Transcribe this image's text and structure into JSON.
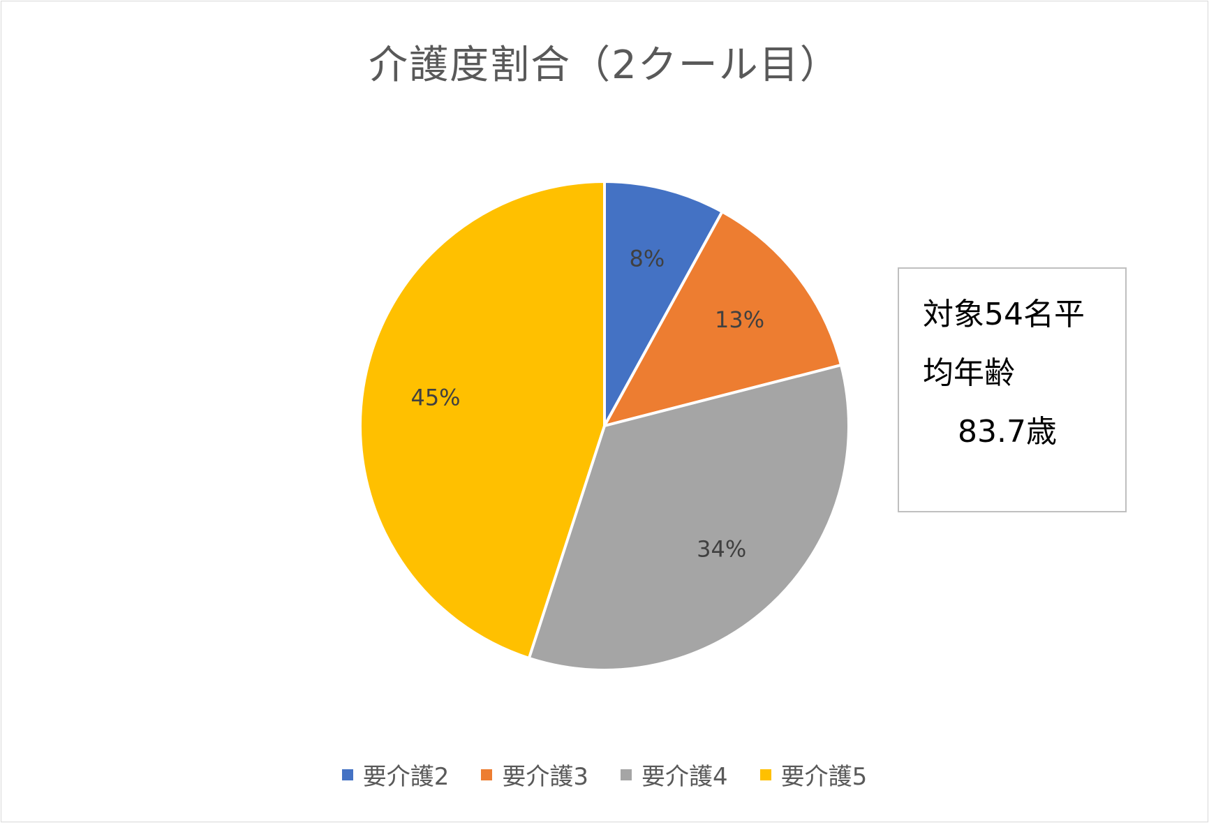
{
  "chart_data": {
    "type": "pie",
    "title": "介護度割合（2クール目）",
    "categories": [
      "要介護2",
      "要介護3",
      "要介護4",
      "要介護5"
    ],
    "values": [
      8,
      13,
      34,
      45
    ],
    "data_labels": [
      "8%",
      "13%",
      "34%",
      "45%"
    ],
    "colors": [
      "#4472c4",
      "#ed7d31",
      "#a5a5a5",
      "#ffc000"
    ],
    "legend_position": "bottom",
    "annotation": {
      "line1": "対象54名平",
      "line2": "均年齢",
      "line3": "83.7歳"
    }
  }
}
